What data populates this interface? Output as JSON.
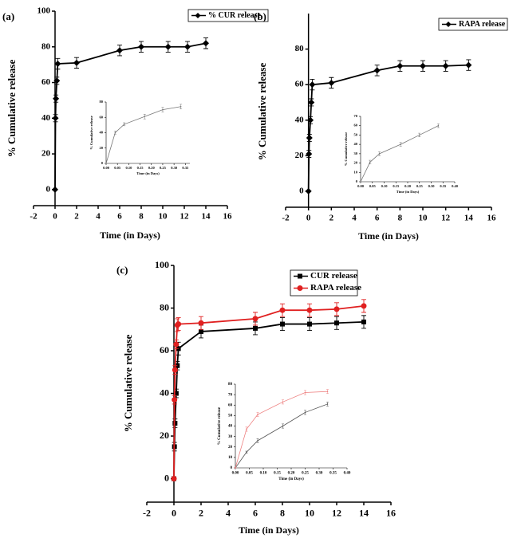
{
  "chart_data": [
    {
      "type": "line",
      "label": "(a)",
      "x_label": "Time (in Days)",
      "y_label": "% Cumulative release",
      "xlim": [
        -2,
        16
      ],
      "ylim": [
        -9,
        100
      ],
      "xticks": [
        -2,
        0,
        2,
        4,
        6,
        8,
        10,
        12,
        14,
        16
      ],
      "yticks": [
        0,
        20,
        40,
        60,
        80,
        100
      ],
      "x": [
        0,
        0.04,
        0.08,
        0.17,
        0.25,
        2,
        6,
        8,
        10.5,
        12.3,
        14
      ],
      "series": [
        {
          "name": "% CUR release",
          "color": "#000000",
          "marker": "diamond",
          "values": [
            0,
            40,
            51,
            61,
            70.5,
            71,
            78,
            80,
            80,
            80,
            82
          ],
          "errors": [
            0,
            2,
            2,
            2,
            3,
            3,
            3,
            3,
            3,
            3,
            3
          ]
        }
      ],
      "inset": {
        "type": "line",
        "x_label": "Time (in Days)",
        "y_label": "% Cumulative release",
        "xlim": [
          0,
          0.37
        ],
        "ylim": [
          0,
          80
        ],
        "xticks": [
          {
            "value": 0,
            "label": "0.00"
          },
          {
            "value": 0.05,
            "label": "0.05"
          },
          {
            "value": 0.1,
            "label": "0.10"
          },
          {
            "value": 0.15,
            "label": "0.15"
          },
          {
            "value": 0.2,
            "label": "0.20"
          },
          {
            "value": 0.25,
            "label": "0.25"
          },
          {
            "value": 0.3,
            "label": "0.30"
          },
          {
            "value": 0.35,
            "label": "0.35"
          }
        ],
        "yticks": [
          0,
          20,
          40,
          60,
          80
        ],
        "x": [
          0,
          0.04,
          0.08,
          0.17,
          0.25,
          0.33
        ],
        "series": [
          {
            "color": "#777777",
            "marker": "none",
            "values": [
              0,
              40,
              51,
              61,
              70,
              74
            ],
            "errors": [
              0,
              2,
              2,
              3,
              3,
              3
            ]
          }
        ]
      }
    },
    {
      "type": "line",
      "label": "(b)",
      "x_label": "Time (in Days)",
      "y_label": "% Cumulative release",
      "xlim": [
        -2,
        16
      ],
      "ylim": [
        -9,
        100
      ],
      "xticks": [
        -2,
        0,
        2,
        4,
        6,
        8,
        10,
        12,
        14,
        16
      ],
      "yticks": [
        0,
        20,
        40,
        60,
        80
      ],
      "x": [
        0,
        0.04,
        0.08,
        0.17,
        0.25,
        0.33,
        2,
        6,
        8,
        10,
        12,
        14
      ],
      "series": [
        {
          "name": "RAPA release",
          "color": "#000000",
          "marker": "diamond",
          "values": [
            0,
            21,
            30,
            40,
            50,
            60,
            61,
            68,
            70.5,
            70.5,
            70.5,
            71
          ],
          "errors": [
            0,
            2,
            2,
            2,
            2,
            3,
            3,
            3,
            3,
            3,
            3,
            3
          ]
        }
      ],
      "inset": {
        "type": "line",
        "x_label": "Time (in Days)",
        "y_label": "% Cumulative release",
        "xlim": [
          0,
          0.4
        ],
        "ylim": [
          0,
          70
        ],
        "xticks": [
          {
            "value": 0,
            "label": "0.00"
          },
          {
            "value": 0.05,
            "label": "0.05"
          },
          {
            "value": 0.1,
            "label": "0.10"
          },
          {
            "value": 0.15,
            "label": "0.15"
          },
          {
            "value": 0.2,
            "label": "0.20"
          },
          {
            "value": 0.25,
            "label": "0.25"
          },
          {
            "value": 0.3,
            "label": "0.30"
          },
          {
            "value": 0.35,
            "label": "0.35"
          },
          {
            "value": 0.4,
            "label": "0.40"
          }
        ],
        "yticks": [
          0,
          10,
          20,
          30,
          40,
          50,
          60,
          70
        ],
        "x": [
          0,
          0.04,
          0.08,
          0.17,
          0.25,
          0.33
        ],
        "series": [
          {
            "color": "#777777",
            "marker": "none",
            "values": [
              0,
              21,
              30,
              40,
              50,
              60
            ],
            "errors": [
              0,
              2,
              2,
              2,
              2,
              2
            ]
          }
        ]
      }
    },
    {
      "type": "line",
      "label": "(c)",
      "x_label": "Time (in Days)",
      "y_label": "% Cumulative release",
      "xlim": [
        -2,
        16
      ],
      "ylim": [
        -11,
        100
      ],
      "xticks": [
        -2,
        0,
        2,
        4,
        6,
        8,
        10,
        12,
        14,
        16
      ],
      "yticks": [
        0,
        20,
        40,
        60,
        80,
        100
      ],
      "x": [
        0,
        0.04,
        0.08,
        0.17,
        0.25,
        0.33,
        2,
        6,
        8,
        10,
        12,
        14
      ],
      "series": [
        {
          "name": "CUR release",
          "color": "#000000",
          "marker": "square",
          "values": [
            0,
            15,
            26,
            40,
            53,
            61,
            69,
            70.5,
            72.5,
            72.5,
            73,
            73.5
          ],
          "errors": [
            0,
            2,
            2,
            2,
            2,
            3,
            3,
            3,
            3,
            3,
            3,
            3
          ]
        },
        {
          "name": "RAPA release",
          "color": "#e02020",
          "marker": "circle",
          "values": [
            0,
            37,
            51,
            63,
            72,
            72.5,
            73,
            75,
            79,
            79,
            79.5,
            81
          ],
          "errors": [
            0,
            2,
            2,
            2,
            3,
            3,
            3,
            3,
            3,
            3,
            3,
            3
          ]
        }
      ],
      "inset": {
        "type": "line",
        "x_label": "Time (in Days)",
        "y_label": "% Cumulative release",
        "xlim": [
          0,
          0.4
        ],
        "ylim": [
          0,
          80
        ],
        "xticks": [
          {
            "value": 0,
            "label": "0.00"
          },
          {
            "value": 0.05,
            "label": "0.05"
          },
          {
            "value": 0.1,
            "label": "0.10"
          },
          {
            "value": 0.15,
            "label": "0.15"
          },
          {
            "value": 0.2,
            "label": "0.20"
          },
          {
            "value": 0.25,
            "label": "0.25"
          },
          {
            "value": 0.3,
            "label": "0.30"
          },
          {
            "value": 0.35,
            "label": "0.35"
          },
          {
            "value": 0.4,
            "label": "0.40"
          }
        ],
        "yticks": [
          0,
          10,
          20,
          30,
          40,
          50,
          60,
          70,
          80
        ],
        "x": [
          0,
          0.04,
          0.08,
          0.17,
          0.25,
          0.33
        ],
        "series": [
          {
            "color": "#555555",
            "marker": "none",
            "values": [
              0,
              15,
              26,
              40,
              53,
              61
            ],
            "errors": [
              0,
              1,
              2,
              2,
              2,
              2
            ]
          },
          {
            "color": "#ee8080",
            "marker": "none",
            "values": [
              0,
              37,
              51,
              63,
              72,
              73
            ],
            "errors": [
              0,
              2,
              2,
              2,
              2,
              2
            ]
          }
        ]
      }
    }
  ]
}
